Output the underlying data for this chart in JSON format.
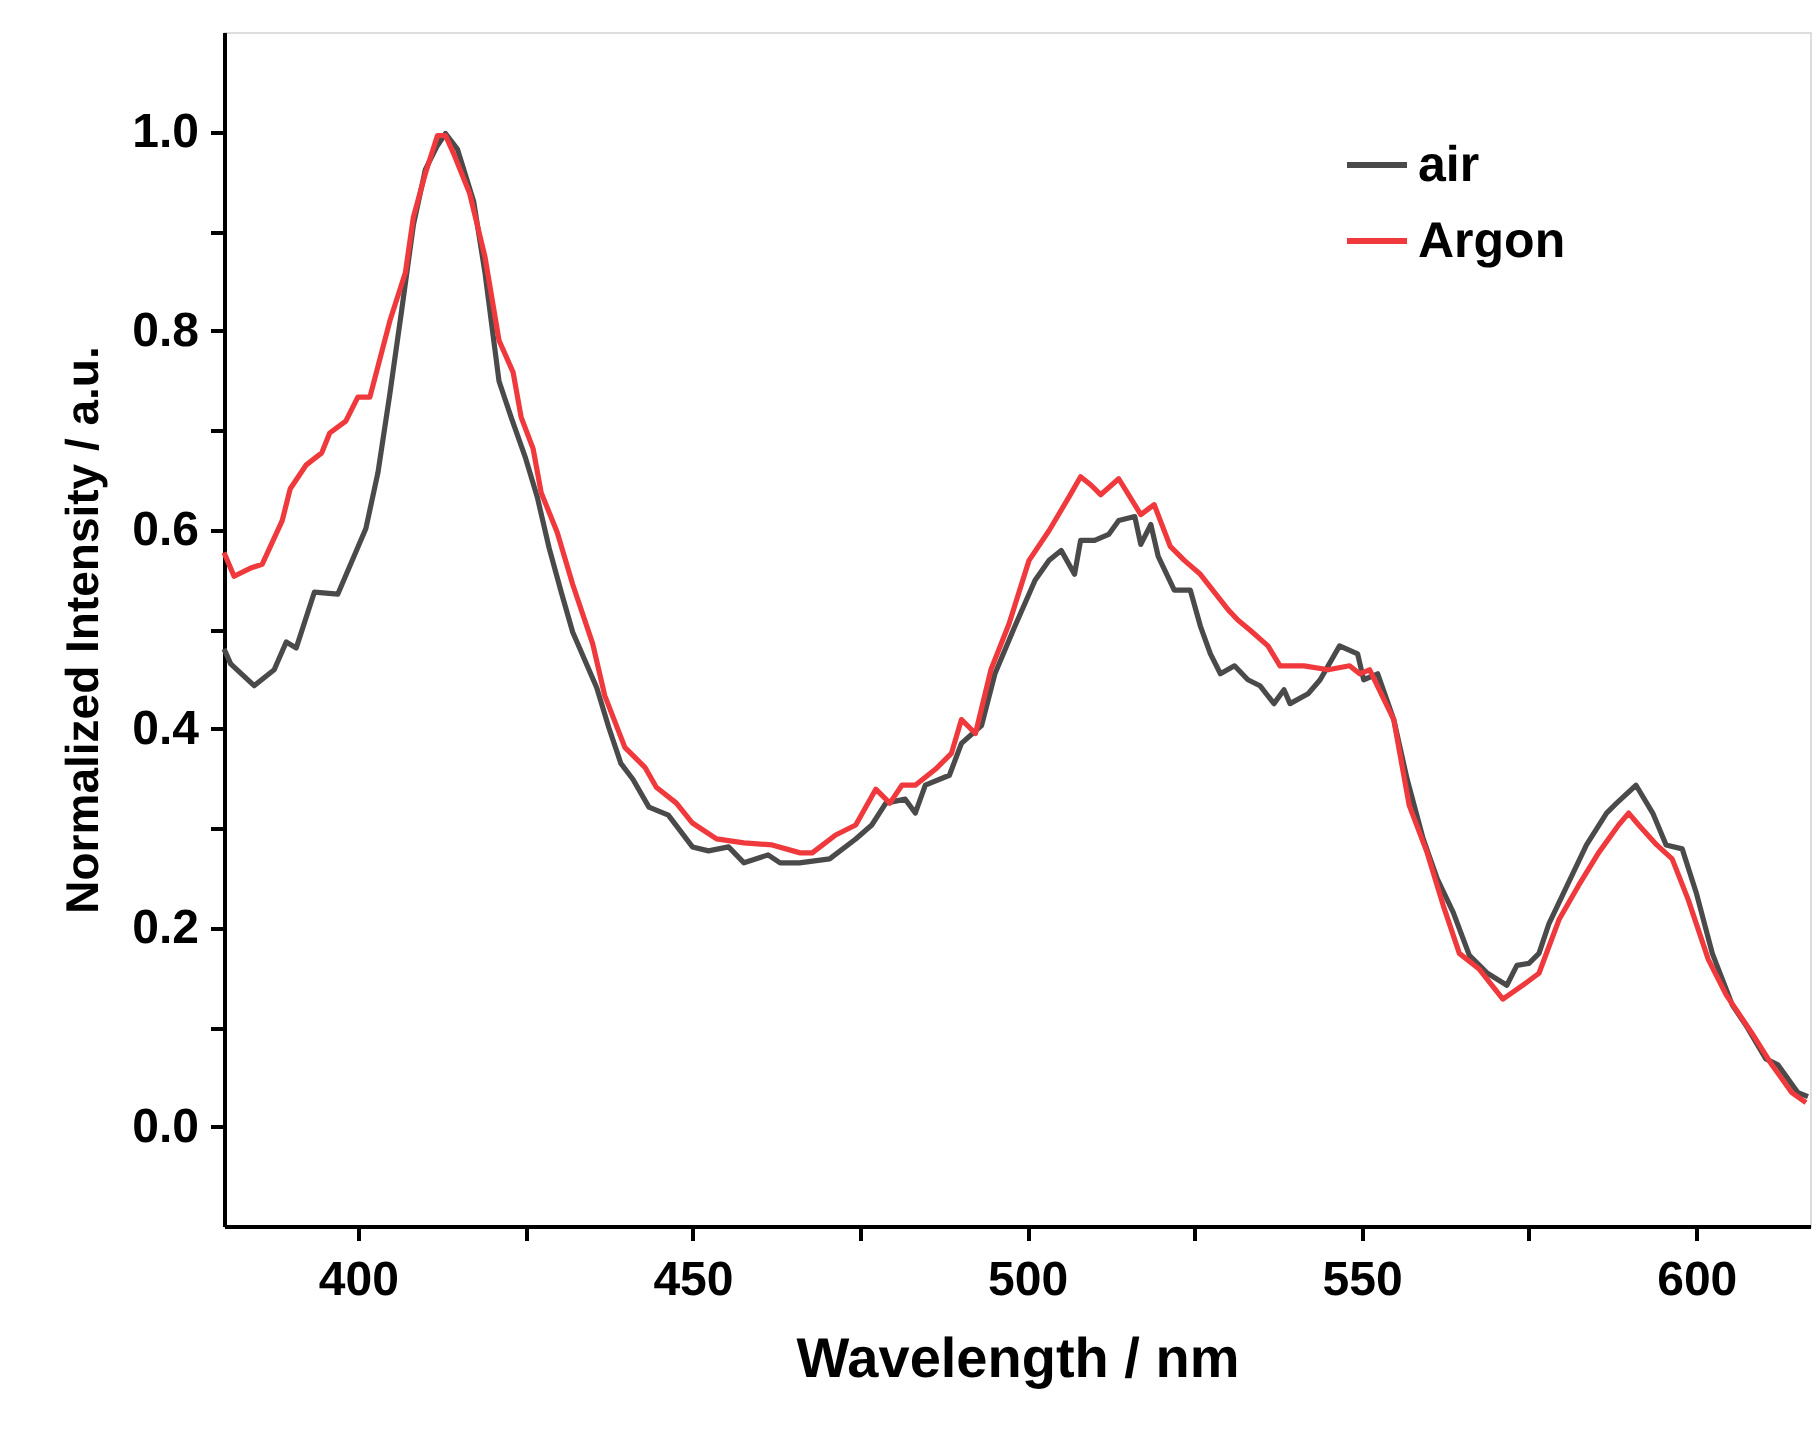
{
  "chart_data": {
    "type": "line",
    "xlabel": "Wavelength / nm",
    "ylabel": "Normalized Intensity / a.u.",
    "xlim": [
      380,
      617
    ],
    "ylim": [
      -0.1,
      1.1
    ],
    "xticks": [
      400,
      {
        "value": 425,
        "label": null
      },
      450,
      {
        "value": 475,
        "label": null
      },
      500,
      {
        "value": 525,
        "label": null
      },
      550,
      {
        "value": 575,
        "label": null
      },
      600
    ],
    "yticks": [
      {
        "value": 0,
        "label": "0.0"
      },
      {
        "value": 0.1,
        "label": null
      },
      {
        "value": 0.2,
        "label": "0.2"
      },
      {
        "value": 0.3,
        "label": null
      },
      {
        "value": 0.4,
        "label": "0.4"
      },
      {
        "value": 0.5,
        "label": null
      },
      {
        "value": 0.6,
        "label": "0.6"
      },
      {
        "value": 0.7,
        "label": null
      },
      {
        "value": 0.8,
        "label": "0.8"
      },
      {
        "value": 0.9,
        "label": null
      },
      {
        "value": 1.0,
        "label": "1.0"
      }
    ],
    "grid": false,
    "legend": "top right",
    "line_style": "solid",
    "marker": "none",
    "series": [
      {
        "name": "air",
        "color": "#4a4a4a",
        "x": [
          380,
          381,
          384.5,
          387.5,
          389.3,
          390.8,
          393.5,
          397,
          401.2,
          403,
          404.8,
          406.5,
          408.3,
          410.1,
          411.9,
          413.1,
          414.9,
          417.3,
          419,
          421.1,
          422.9,
          425,
          426.8,
          428.6,
          430.4,
          432.1,
          435.7,
          437.5,
          439.3,
          441.1,
          443.5,
          446.4,
          450,
          452.4,
          455.4,
          457.7,
          461.3,
          463.1,
          466,
          470.5,
          474.4,
          476.8,
          478.9,
          481.8,
          483.3,
          484.8,
          488.4,
          490.2,
          493.2,
          495.2,
          498.2,
          501.2,
          503.3,
          505.1,
          507.1,
          508,
          510.1,
          512.2,
          513.7,
          516.1,
          517,
          518.5,
          519.6,
          522,
          524.4,
          525.9,
          527.4,
          528.9,
          531,
          533,
          534.8,
          536.9,
          538.4,
          539.3,
          542,
          543.8,
          546.7,
          549.4,
          550.3,
          552.4,
          554.8,
          556.8,
          559.2,
          561.3,
          563.7,
          566.1,
          568.8,
          571.7,
          573.2,
          575,
          576.5,
          578,
          580.7,
          583.6,
          586.6,
          588.1,
          591,
          593.5,
          595.5,
          597.9,
          600,
          602.4,
          605.4,
          607.4,
          610.4,
          612.2,
          615.2,
          616.7
        ],
        "values": [
          0.48,
          0.465,
          0.443,
          0.459,
          0.487,
          0.481,
          0.537,
          0.535,
          0.601,
          0.657,
          0.737,
          0.818,
          0.906,
          0.962,
          0.986,
          0.998,
          0.982,
          0.93,
          0.858,
          0.749,
          0.713,
          0.673,
          0.633,
          0.581,
          0.537,
          0.497,
          0.441,
          0.401,
          0.365,
          0.349,
          0.321,
          0.313,
          0.281,
          0.277,
          0.281,
          0.265,
          0.273,
          0.265,
          0.265,
          0.269,
          0.289,
          0.303,
          0.325,
          0.329,
          0.315,
          0.343,
          0.353,
          0.385,
          0.403,
          0.455,
          0.503,
          0.549,
          0.569,
          0.579,
          0.555,
          0.589,
          0.589,
          0.595,
          0.609,
          0.613,
          0.585,
          0.605,
          0.573,
          0.539,
          0.539,
          0.503,
          0.475,
          0.455,
          0.463,
          0.449,
          0.443,
          0.425,
          0.439,
          0.425,
          0.435,
          0.449,
          0.483,
          0.475,
          0.449,
          0.455,
          0.409,
          0.349,
          0.289,
          0.249,
          0.215,
          0.172,
          0.154,
          0.142,
          0.162,
          0.164,
          0.174,
          0.204,
          0.242,
          0.283,
          0.315,
          0.325,
          0.343,
          0.315,
          0.283,
          0.279,
          0.235,
          0.174,
          0.122,
          0.102,
          0.068,
          0.062,
          0.034,
          0.03
        ]
      },
      {
        "name": "Argon",
        "color": "#f0393c",
        "x": [
          380,
          381.5,
          383.9,
          385.7,
          388.7,
          389.9,
          392.3,
          394.6,
          395.8,
          398.2,
          400,
          401.8,
          404.8,
          407.1,
          408.3,
          410.1,
          411.9,
          413.1,
          414.3,
          416.7,
          419,
          421.1,
          423.2,
          424.4,
          426.2,
          427.4,
          429.8,
          432.1,
          435.1,
          436.9,
          439.9,
          442.9,
          444.6,
          447.6,
          450,
          453.6,
          457.7,
          461.9,
          466.1,
          467.9,
          471.4,
          474.4,
          477.4,
          479.5,
          481.3,
          483.3,
          486.3,
          488.7,
          490.2,
          492.3,
          494.6,
          497.3,
          500.3,
          503.3,
          506.3,
          508,
          509.5,
          511,
          513.7,
          517,
          519,
          521.4,
          523.5,
          525.9,
          530.1,
          531.5,
          533.3,
          536,
          537.8,
          541.4,
          545,
          548.2,
          549.7,
          551.2,
          554.8,
          557.1,
          559.8,
          562.2,
          564.6,
          567.6,
          571.1,
          574.1,
          576.5,
          579.5,
          582.4,
          585.4,
          588.4,
          589.9,
          591.4,
          594.1,
          596.4,
          598.8,
          601.8,
          604.5,
          608.3,
          611.3,
          614.3,
          616.4
        ],
        "values": [
          0.577,
          0.553,
          0.561,
          0.565,
          0.609,
          0.641,
          0.665,
          0.677,
          0.697,
          0.709,
          0.733,
          0.733,
          0.81,
          0.858,
          0.914,
          0.958,
          0.996,
          0.996,
          0.978,
          0.938,
          0.874,
          0.79,
          0.758,
          0.713,
          0.681,
          0.637,
          0.597,
          0.545,
          0.485,
          0.433,
          0.381,
          0.361,
          0.341,
          0.325,
          0.305,
          0.289,
          0.285,
          0.283,
          0.275,
          0.275,
          0.293,
          0.303,
          0.339,
          0.325,
          0.343,
          0.343,
          0.359,
          0.375,
          0.409,
          0.395,
          0.459,
          0.505,
          0.569,
          0.599,
          0.633,
          0.653,
          0.645,
          0.635,
          0.651,
          0.615,
          0.625,
          0.583,
          0.569,
          0.555,
          0.519,
          0.509,
          0.499,
          0.483,
          0.463,
          0.463,
          0.459,
          0.463,
          0.455,
          0.459,
          0.409,
          0.323,
          0.275,
          0.222,
          0.174,
          0.158,
          0.128,
          0.142,
          0.154,
          0.208,
          0.242,
          0.275,
          0.303,
          0.315,
          0.303,
          0.283,
          0.269,
          0.228,
          0.168,
          0.132,
          0.094,
          0.062,
          0.034,
          0.024
        ]
      }
    ]
  }
}
